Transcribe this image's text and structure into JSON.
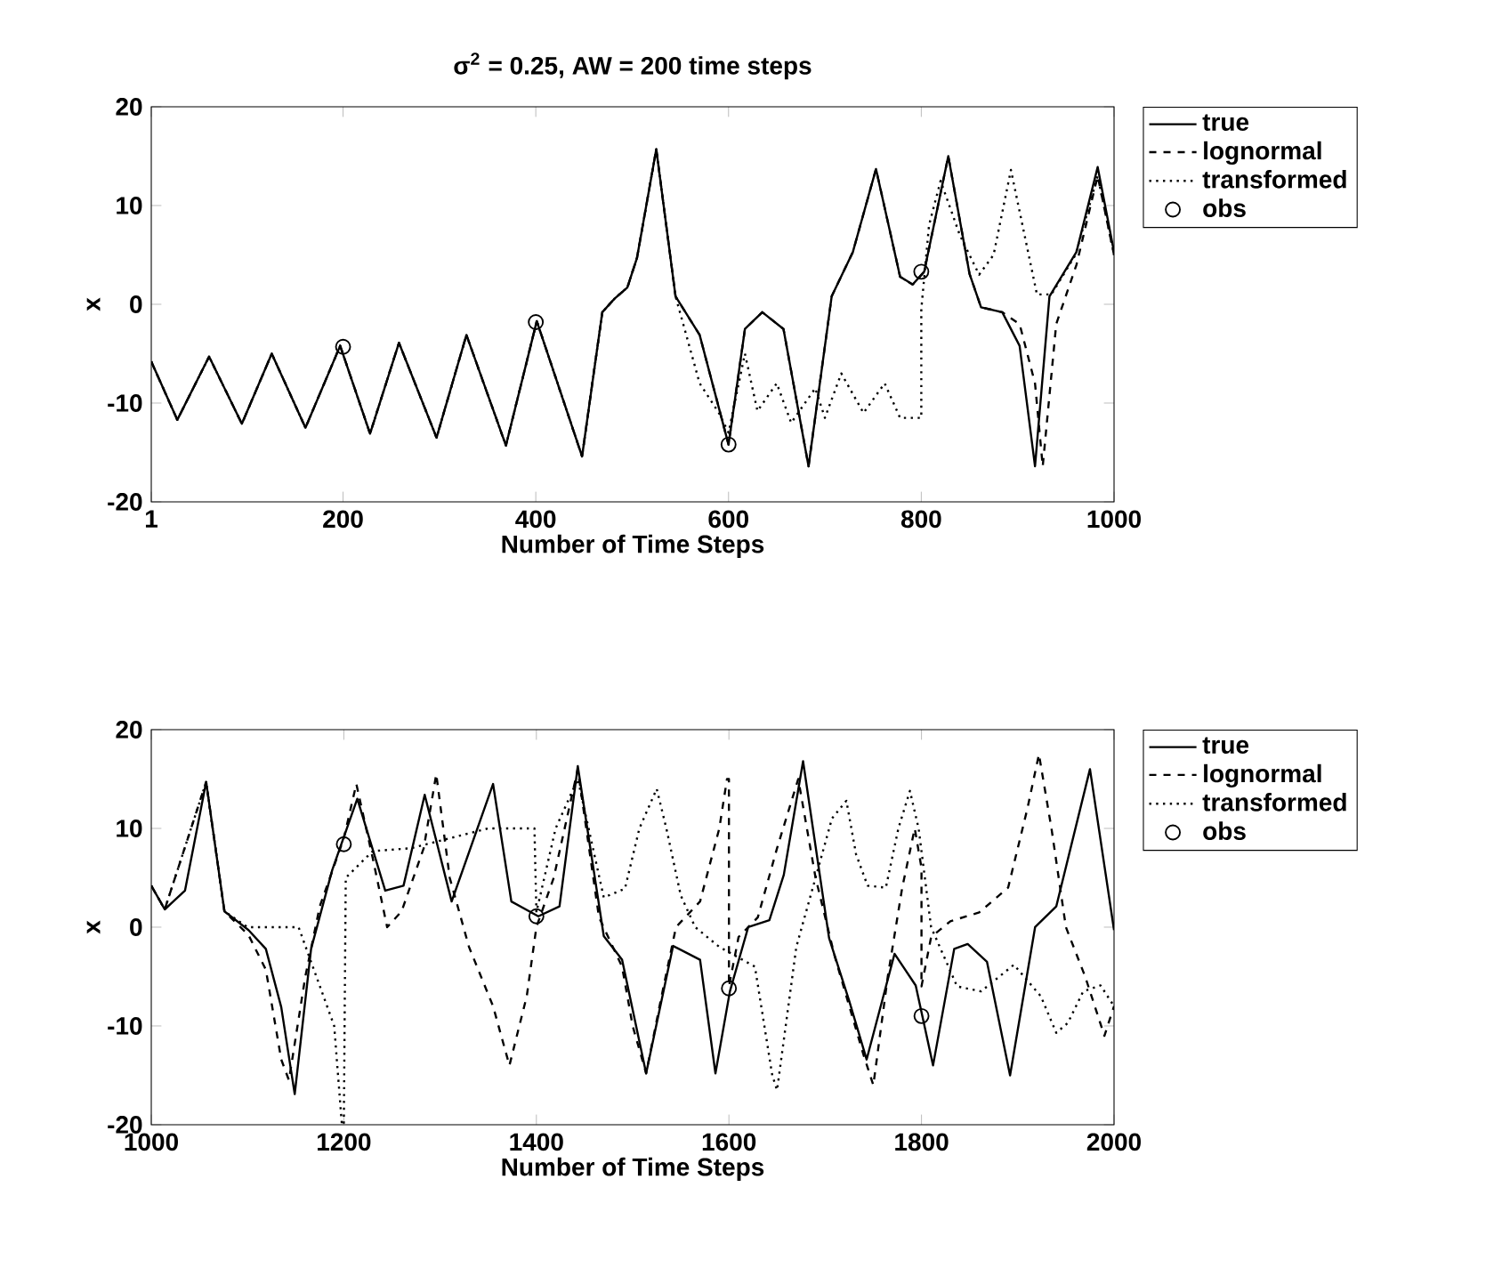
{
  "chart_data": [
    {
      "type": "line",
      "title": "σ$^{2}$ = 0.25, AW = 200 time steps",
      "xlabel": "Number of Time Steps",
      "ylabel": "x",
      "xlim": [
        1,
        1000
      ],
      "xticks": [
        1,
        200,
        400,
        600,
        800,
        1000
      ],
      "ylim": [
        -20,
        20
      ],
      "yticks": [
        -20,
        -10,
        0,
        10,
        20
      ],
      "legend": "right",
      "series": [
        {
          "name": "true",
          "color": "#000000",
          "line_style": "solid",
          "x": [
            1,
            28,
            61,
            95,
            126,
            161,
            197,
            228,
            258,
            297,
            328,
            369,
            401,
            448,
            469,
            482,
            495,
            505,
            525,
            545,
            570,
            600,
            617,
            635,
            657,
            683,
            707,
            729,
            753,
            778,
            791,
            803,
            828,
            850,
            862,
            884,
            902,
            918,
            933,
            961,
            983,
            1000
          ],
          "values": [
            -5.8,
            -11.7,
            -5.3,
            -12.1,
            -5.0,
            -12.5,
            -4.2,
            -13.1,
            -3.9,
            -13.5,
            -3.1,
            -14.3,
            -1.7,
            -15.4,
            -0.8,
            0.6,
            1.7,
            4.7,
            15.7,
            0.8,
            -3.1,
            -14.2,
            -2.5,
            -0.8,
            -2.5,
            -16.4,
            0.8,
            5.3,
            13.7,
            2.8,
            2.0,
            3.3,
            15.0,
            3.1,
            -0.3,
            -0.8,
            -4.2,
            -16.4,
            0.8,
            5.3,
            13.9,
            5.3
          ]
        },
        {
          "name": "lognormal",
          "color": "#000000",
          "line_style": "dashed",
          "x": [
            1,
            28,
            61,
            95,
            126,
            161,
            197,
            228,
            258,
            297,
            328,
            369,
            401,
            448,
            469,
            482,
            495,
            505,
            525,
            545,
            570,
            600,
            617,
            635,
            657,
            683,
            707,
            729,
            753,
            778,
            791,
            803,
            828,
            850,
            862,
            884,
            902,
            918,
            926,
            940,
            961,
            983,
            1000
          ],
          "values": [
            -5.8,
            -11.7,
            -5.3,
            -12.1,
            -5.0,
            -12.5,
            -4.2,
            -13.1,
            -3.9,
            -13.5,
            -3.1,
            -14.3,
            -1.7,
            -15.4,
            -0.8,
            0.6,
            1.7,
            4.7,
            15.7,
            0.8,
            -3.1,
            -14.2,
            -2.5,
            -0.8,
            -2.5,
            -16.4,
            0.8,
            5.3,
            13.7,
            2.8,
            2.0,
            3.3,
            15.0,
            3.1,
            -0.3,
            -0.8,
            -2.0,
            -8.0,
            -16.4,
            -2.0,
            4.0,
            13.0,
            5.0
          ]
        },
        {
          "name": "transformed",
          "color": "#000000",
          "line_style": "dotted",
          "x": [
            1,
            28,
            61,
            95,
            126,
            161,
            197,
            228,
            258,
            297,
            328,
            369,
            401,
            448,
            469,
            482,
            495,
            505,
            525,
            545,
            570,
            590,
            600,
            617,
            630,
            650,
            665,
            690,
            700,
            717,
            740,
            762,
            778,
            800,
            800,
            808,
            820,
            840,
            860,
            875,
            893,
            905,
            920,
            935,
            960,
            983,
            1000
          ],
          "values": [
            -5.8,
            -11.7,
            -5.3,
            -12.1,
            -5.0,
            -12.5,
            -4.2,
            -13.1,
            -3.9,
            -13.5,
            -3.1,
            -14.3,
            -1.7,
            -15.4,
            -0.8,
            0.6,
            1.7,
            4.7,
            15.7,
            0.8,
            -8.0,
            -11.0,
            -13.0,
            -5.0,
            -10.8,
            -8.0,
            -12.0,
            -8.5,
            -11.5,
            -7.0,
            -11.0,
            -8.0,
            -11.5,
            -11.5,
            -0.5,
            8.0,
            12.5,
            7.0,
            3.0,
            5.0,
            13.6,
            8.0,
            1.0,
            1.0,
            5.0,
            13.0,
            5.0
          ]
        },
        {
          "name": "obs",
          "color": "#000000",
          "type": "scatter",
          "marker": "circle",
          "x": [
            200,
            400,
            600,
            800
          ],
          "values": [
            -4.3,
            -1.8,
            -14.2,
            3.3
          ]
        }
      ]
    },
    {
      "type": "line",
      "xlabel": "Number of Time Steps",
      "ylabel": "x",
      "xlim": [
        1000,
        2000
      ],
      "xticks": [
        1000,
        1200,
        1400,
        1600,
        1800,
        2000
      ],
      "ylim": [
        -20,
        20
      ],
      "yticks": [
        -20,
        -10,
        0,
        10,
        20
      ],
      "legend": "right",
      "series": [
        {
          "name": "true",
          "color": "#000000",
          "line_style": "solid",
          "x": [
            1000,
            1014,
            1035,
            1057,
            1076,
            1101,
            1119,
            1135,
            1149,
            1166,
            1188,
            1214,
            1243,
            1262,
            1284,
            1312,
            1355,
            1374,
            1402,
            1424,
            1443,
            1470,
            1489,
            1514,
            1542,
            1570,
            1586,
            1601,
            1620,
            1642,
            1657,
            1677,
            1704,
            1725,
            1743,
            1772,
            1794,
            1812,
            1834,
            1848,
            1868,
            1892,
            1918,
            1940,
            1975,
            2000
          ],
          "values": [
            4.2,
            1.8,
            3.7,
            14.7,
            1.6,
            -0.3,
            -2.2,
            -8.1,
            -16.9,
            -2.2,
            5.8,
            13.0,
            3.7,
            4.2,
            13.4,
            2.6,
            14.5,
            2.6,
            1.1,
            2.1,
            16.3,
            -0.9,
            -3.3,
            -14.8,
            -1.9,
            -3.3,
            -14.8,
            -6.5,
            0,
            0.7,
            5.3,
            16.8,
            -1.1,
            -7.5,
            -13.4,
            -2.7,
            -5.9,
            -14.0,
            -2.2,
            -1.7,
            -3.5,
            -15.0,
            0,
            2.1,
            16.0,
            -0.3
          ]
        },
        {
          "name": "lognormal",
          "color": "#000000",
          "line_style": "dashed",
          "x": [
            1000,
            1014,
            1057,
            1076,
            1101,
            1119,
            1135,
            1143,
            1160,
            1175,
            1200,
            1213,
            1230,
            1245,
            1260,
            1283,
            1296,
            1310,
            1330,
            1355,
            1372,
            1390,
            1400,
            1418,
            1443,
            1465,
            1489,
            1500,
            1514,
            1530,
            1545,
            1570,
            1590,
            1598,
            1600,
            1600,
            1610,
            1630,
            1650,
            1672,
            1690,
            1710,
            1740,
            1750,
            1765,
            1780,
            1793,
            1800,
            1800,
            1810,
            1830,
            1860,
            1890,
            1910,
            1922,
            1935,
            1950,
            1970,
            1990,
            2000
          ],
          "values": [
            4.2,
            1.8,
            14.7,
            1.6,
            -0.8,
            -4.3,
            -13.4,
            -15.5,
            -5.0,
            2.1,
            9.0,
            14.5,
            7.0,
            0,
            1.6,
            8.0,
            15.5,
            5.0,
            -2.0,
            -8.0,
            -14.0,
            -7.0,
            0,
            5.0,
            16.0,
            1.0,
            -4.0,
            -10.0,
            -14.8,
            -7.0,
            0,
            2.6,
            10.0,
            15.0,
            15.0,
            -6.0,
            -1.0,
            1.0,
            8.0,
            15.0,
            5.0,
            -3.0,
            -13.0,
            -16.0,
            -5.0,
            4.0,
            10.0,
            6.0,
            -6.0,
            -1.0,
            0.6,
            1.5,
            4.0,
            12.0,
            17.5,
            10.0,
            0,
            -5.0,
            -11.0,
            -8.0
          ]
        },
        {
          "name": "transformed",
          "color": "#000000",
          "line_style": "dotted",
          "x": [
            1000,
            1014,
            1057,
            1076,
            1100,
            1153,
            1190,
            1198,
            1200,
            1202,
            1230,
            1270,
            1310,
            1350,
            1380,
            1398,
            1400,
            1420,
            1443,
            1470,
            1492,
            1507,
            1525,
            1535,
            1550,
            1565,
            1590,
            1627,
            1645,
            1650,
            1670,
            1690,
            1707,
            1722,
            1732,
            1744,
            1763,
            1776,
            1788,
            1797,
            1810,
            1837,
            1862,
            1896,
            1924,
            1940,
            1952,
            1968,
            1986,
            2000
          ],
          "values": [
            4.2,
            1.8,
            14.7,
            1.6,
            0,
            0,
            -10.0,
            -20.0,
            -20.0,
            5.0,
            7.7,
            8.0,
            9.0,
            10.0,
            10.0,
            10.0,
            1.5,
            10.0,
            15.0,
            3.0,
            3.9,
            10.0,
            14.0,
            10.0,
            3.2,
            0,
            -2.0,
            -4.0,
            -15.0,
            -16.5,
            -2.0,
            5.0,
            11.0,
            12.8,
            7.4,
            4.2,
            4.0,
            10.0,
            13.8,
            10.0,
            0,
            -6.0,
            -6.5,
            -3.8,
            -7.0,
            -10.7,
            -9.7,
            -6.5,
            -5.9,
            -8.0
          ]
        },
        {
          "name": "obs",
          "color": "#000000",
          "type": "scatter",
          "marker": "circle",
          "x": [
            1200,
            1400,
            1600,
            1800
          ],
          "values": [
            8.4,
            1.1,
            -6.2,
            -9.0
          ]
        }
      ]
    }
  ]
}
